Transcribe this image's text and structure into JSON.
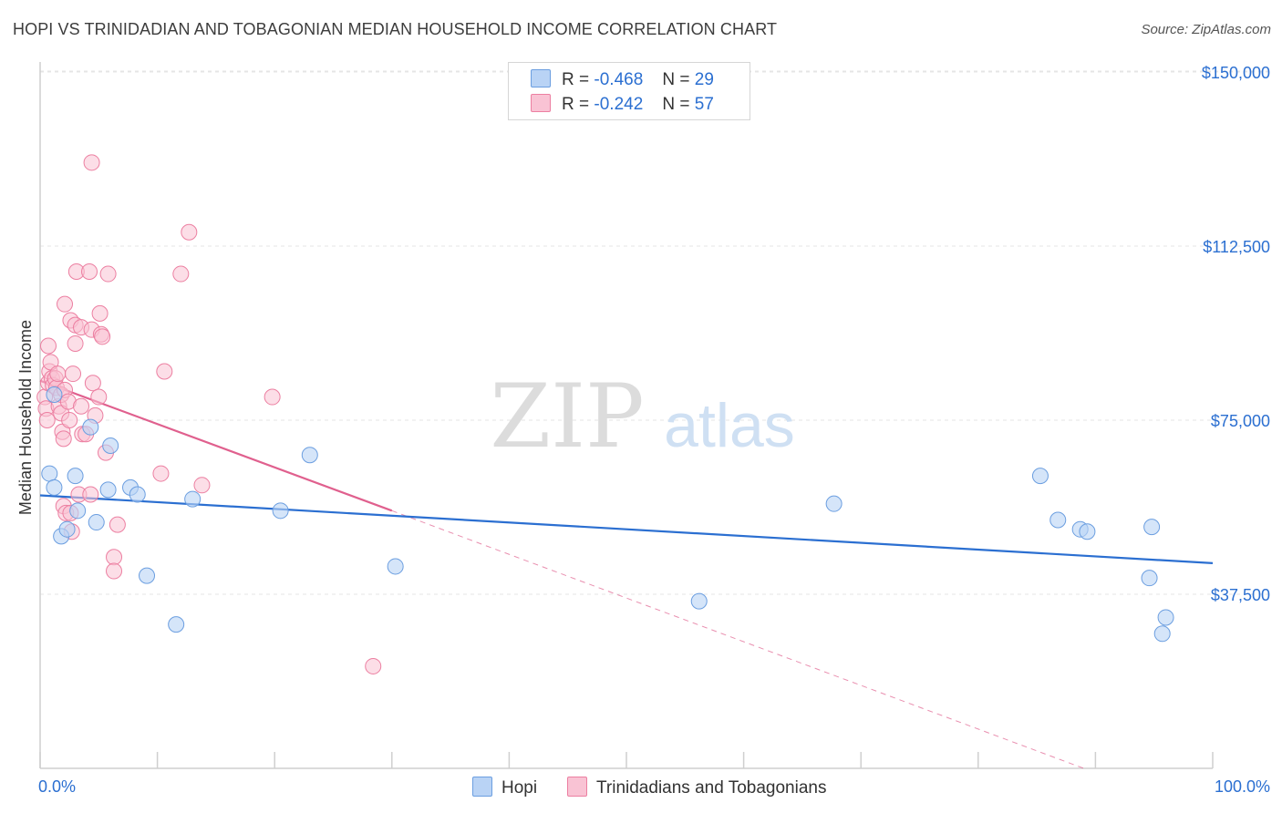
{
  "header": {
    "title": "HOPI VS TRINIDADIAN AND TOBAGONIAN MEDIAN HOUSEHOLD INCOME CORRELATION CHART",
    "source": "Source: ZipAtlas.com"
  },
  "legend_stats": [
    {
      "r_label": "R =",
      "r_value": "-0.468",
      "n_label": "N =",
      "n_value": "29"
    },
    {
      "r_label": "R =",
      "r_value": "-0.242",
      "n_label": "N =",
      "n_value": "57"
    }
  ],
  "watermark": {
    "zip": "ZIP",
    "atlas": "atlas"
  },
  "colors": {
    "hopi_fill": "#b9d3f5",
    "hopi_stroke": "#6b9ee0",
    "hopi_line": "#2b6fd1",
    "trin_fill": "#f9c3d4",
    "trin_stroke": "#ec7fa1",
    "trin_line": "#e0608e",
    "axis_text": "#2b6fd1",
    "grid": "#e5e5e5"
  },
  "chart_data": {
    "type": "scatter",
    "title": "HOPI VS TRINIDADIAN AND TOBAGONIAN MEDIAN HOUSEHOLD INCOME CORRELATION CHART",
    "xlabel": "",
    "ylabel": "Median Household Income",
    "xlim": [
      0,
      100
    ],
    "ylim": [
      0,
      155000
    ],
    "x_tick_labels": [
      "0.0%",
      "100.0%"
    ],
    "y_ticks": [
      37500,
      75000,
      112500,
      150000
    ],
    "y_tick_labels": [
      "$37,500",
      "$75,000",
      "$112,500",
      "$150,000"
    ],
    "grid": true,
    "legend_position": "top-center",
    "series": [
      {
        "name": "Hopi",
        "r": -0.468,
        "n": 29,
        "trend": {
          "x": [
            0,
            100
          ],
          "y": [
            58800,
            44200
          ]
        },
        "points": [
          {
            "x": 0.8,
            "y": 63500
          },
          {
            "x": 1.2,
            "y": 60500
          },
          {
            "x": 1.8,
            "y": 50000
          },
          {
            "x": 2.3,
            "y": 51500
          },
          {
            "x": 3.0,
            "y": 63000
          },
          {
            "x": 3.2,
            "y": 55500
          },
          {
            "x": 4.3,
            "y": 73500
          },
          {
            "x": 4.8,
            "y": 53000
          },
          {
            "x": 5.8,
            "y": 60000
          },
          {
            "x": 6.0,
            "y": 69500
          },
          {
            "x": 7.7,
            "y": 60500
          },
          {
            "x": 8.3,
            "y": 59000
          },
          {
            "x": 9.1,
            "y": 41500
          },
          {
            "x": 11.6,
            "y": 31000
          },
          {
            "x": 13.0,
            "y": 58000
          },
          {
            "x": 20.5,
            "y": 55500
          },
          {
            "x": 23.0,
            "y": 67500
          },
          {
            "x": 30.3,
            "y": 43500
          },
          {
            "x": 56.2,
            "y": 36000
          },
          {
            "x": 67.7,
            "y": 57000
          },
          {
            "x": 85.3,
            "y": 63000
          },
          {
            "x": 86.8,
            "y": 53500
          },
          {
            "x": 88.7,
            "y": 51500
          },
          {
            "x": 89.3,
            "y": 51000
          },
          {
            "x": 94.6,
            "y": 41000
          },
          {
            "x": 94.8,
            "y": 52000
          },
          {
            "x": 95.7,
            "y": 29000
          },
          {
            "x": 96.0,
            "y": 32500
          },
          {
            "x": 1.2,
            "y": 80500
          }
        ]
      },
      {
        "name": "Trinidadians and Tobagonians",
        "r": -0.242,
        "n": 57,
        "trend": {
          "x": [
            0,
            30
          ],
          "y": [
            83500,
            55500
          ]
        },
        "trend_dashed": {
          "x": [
            30,
            89
          ],
          "y": [
            55500,
            0
          ]
        },
        "points": [
          {
            "x": 0.4,
            "y": 80000
          },
          {
            "x": 0.5,
            "y": 77500
          },
          {
            "x": 0.6,
            "y": 75000
          },
          {
            "x": 0.7,
            "y": 83000
          },
          {
            "x": 0.7,
            "y": 91000
          },
          {
            "x": 0.8,
            "y": 85500
          },
          {
            "x": 0.9,
            "y": 87500
          },
          {
            "x": 1.0,
            "y": 84000
          },
          {
            "x": 1.1,
            "y": 82500
          },
          {
            "x": 1.3,
            "y": 84000
          },
          {
            "x": 1.4,
            "y": 82000
          },
          {
            "x": 1.5,
            "y": 85000
          },
          {
            "x": 1.6,
            "y": 78000
          },
          {
            "x": 1.8,
            "y": 80500
          },
          {
            "x": 1.8,
            "y": 76500
          },
          {
            "x": 1.9,
            "y": 72500
          },
          {
            "x": 2.0,
            "y": 71000
          },
          {
            "x": 2.0,
            "y": 56500
          },
          {
            "x": 2.1,
            "y": 81500
          },
          {
            "x": 2.1,
            "y": 100000
          },
          {
            "x": 2.2,
            "y": 55000
          },
          {
            "x": 2.4,
            "y": 79000
          },
          {
            "x": 2.5,
            "y": 75000
          },
          {
            "x": 2.6,
            "y": 55000
          },
          {
            "x": 2.6,
            "y": 96500
          },
          {
            "x": 2.7,
            "y": 51000
          },
          {
            "x": 2.8,
            "y": 85000
          },
          {
            "x": 3.0,
            "y": 91500
          },
          {
            "x": 3.0,
            "y": 95500
          },
          {
            "x": 3.1,
            "y": 107000
          },
          {
            "x": 3.3,
            "y": 59000
          },
          {
            "x": 3.5,
            "y": 95000
          },
          {
            "x": 3.5,
            "y": 78000
          },
          {
            "x": 3.6,
            "y": 72000
          },
          {
            "x": 3.9,
            "y": 72000
          },
          {
            "x": 4.2,
            "y": 107000
          },
          {
            "x": 4.3,
            "y": 59000
          },
          {
            "x": 4.4,
            "y": 94500
          },
          {
            "x": 4.4,
            "y": 130500
          },
          {
            "x": 4.5,
            "y": 83000
          },
          {
            "x": 4.7,
            "y": 76000
          },
          {
            "x": 5.0,
            "y": 80000
          },
          {
            "x": 5.1,
            "y": 98000
          },
          {
            "x": 5.2,
            "y": 93500
          },
          {
            "x": 5.3,
            "y": 93000
          },
          {
            "x": 5.6,
            "y": 68000
          },
          {
            "x": 5.8,
            "y": 106500
          },
          {
            "x": 6.3,
            "y": 45500
          },
          {
            "x": 6.3,
            "y": 42500
          },
          {
            "x": 6.6,
            "y": 52500
          },
          {
            "x": 10.3,
            "y": 63500
          },
          {
            "x": 10.6,
            "y": 85500
          },
          {
            "x": 12.0,
            "y": 106500
          },
          {
            "x": 12.7,
            "y": 115500
          },
          {
            "x": 13.8,
            "y": 61000
          },
          {
            "x": 19.8,
            "y": 80000
          },
          {
            "x": 28.4,
            "y": 22000
          }
        ]
      }
    ]
  }
}
